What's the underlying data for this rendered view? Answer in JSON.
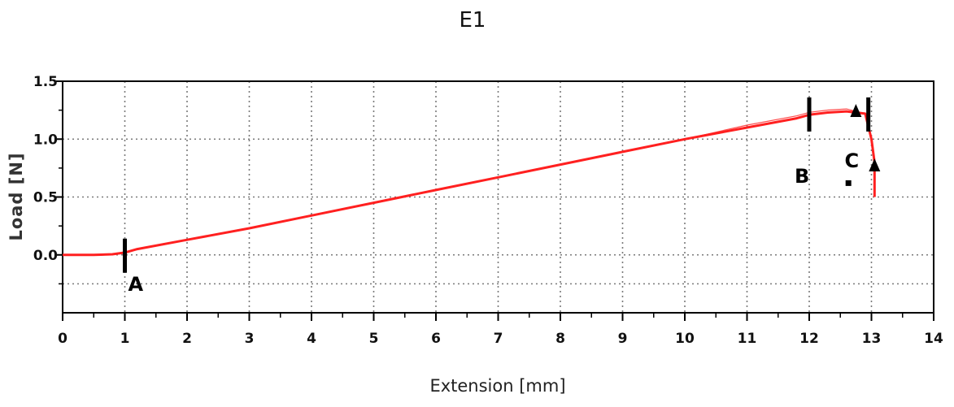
{
  "chart_data": {
    "type": "line",
    "title": "E1",
    "xlabel": "Extension [mm]",
    "ylabel": "Load [N]",
    "xlim": [
      0,
      14
    ],
    "ylim": [
      -0.5,
      1.5
    ],
    "xticks": [
      0,
      1,
      2,
      3,
      4,
      5,
      6,
      7,
      8,
      9,
      10,
      11,
      12,
      13,
      14
    ],
    "yticks": [
      0.0,
      0.5,
      1.0,
      1.5
    ],
    "ytick_labels": [
      "0.0",
      "0.5",
      "1.0",
      "1.5"
    ],
    "grid": true,
    "line_color": "#ff2020",
    "series": [
      {
        "x": [
          0,
          0.5,
          0.8,
          1.0,
          1.2,
          2,
          3,
          4,
          5,
          6,
          7,
          8,
          9,
          10,
          11,
          11.8,
          12.0,
          12.3,
          12.6,
          12.9,
          13.0,
          13.05,
          13.05
        ],
        "y": [
          0,
          0,
          0.005,
          0.02,
          0.05,
          0.13,
          0.23,
          0.34,
          0.45,
          0.56,
          0.67,
          0.78,
          0.89,
          1.0,
          1.1,
          1.18,
          1.21,
          1.23,
          1.24,
          1.22,
          1.0,
          0.8,
          0.5
        ]
      }
    ],
    "annotations": [
      {
        "label": "A",
        "marker": "bar",
        "x": 1.0,
        "y": 0.0
      },
      {
        "label": "B",
        "marker": "bar",
        "x": 12.0,
        "y": 1.22
      },
      {
        "label": "",
        "marker": "bar",
        "x": 12.95,
        "y": 1.22
      },
      {
        "label": "C",
        "marker": "none",
        "x": 12.7,
        "y": 0.82
      },
      {
        "label": "",
        "marker": "triangle",
        "x": 12.75,
        "y": 1.24
      },
      {
        "label": "",
        "marker": "triangle",
        "x": 13.05,
        "y": 0.77
      },
      {
        "label": "",
        "marker": "square",
        "x": 12.63,
        "y": 0.62
      }
    ]
  }
}
